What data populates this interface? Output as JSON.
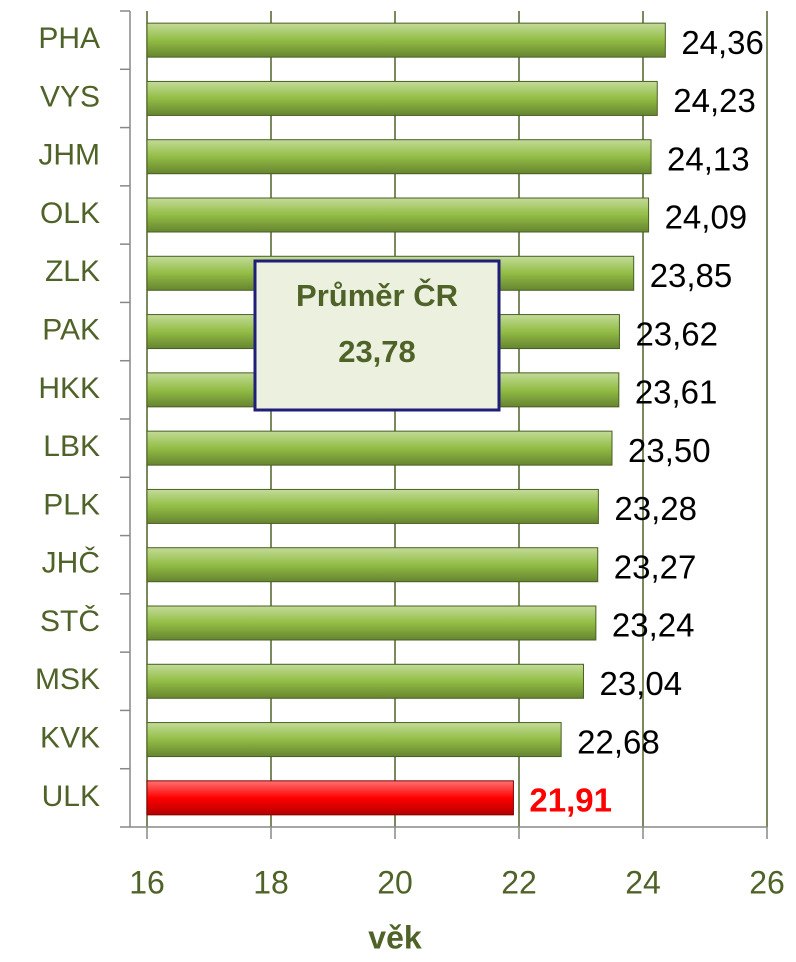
{
  "chart_data": {
    "type": "hbar",
    "categories": [
      "PHA",
      "VYS",
      "JHM",
      "OLK",
      "ZLK",
      "PAK",
      "HKK",
      "LBK",
      "PLK",
      "JHČ",
      "STČ",
      "MSK",
      "KVK",
      "ULK"
    ],
    "values": [
      24.36,
      24.23,
      24.13,
      24.09,
      23.85,
      23.62,
      23.61,
      23.5,
      23.28,
      23.27,
      23.24,
      23.04,
      22.68,
      21.91
    ],
    "value_labels": [
      "24,36",
      "24,23",
      "24,13",
      "24,09",
      "23,85",
      "23,62",
      "23,61",
      "23,50",
      "23,28",
      "23,27",
      "23,24",
      "23,04",
      "22,68",
      "21,91"
    ],
    "colors": [
      "#92bd45",
      "#92bd45",
      "#92bd45",
      "#92bd45",
      "#92bd45",
      "#92bd45",
      "#92bd45",
      "#92bd45",
      "#92bd45",
      "#92bd45",
      "#92bd45",
      "#92bd45",
      "#92bd45",
      "#ff0000"
    ],
    "value_label_colors": [
      "#000000",
      "#000000",
      "#000000",
      "#000000",
      "#000000",
      "#000000",
      "#000000",
      "#000000",
      "#000000",
      "#000000",
      "#000000",
      "#000000",
      "#000000",
      "#ff0000"
    ],
    "xlabel": "věk",
    "xlim": [
      16,
      26
    ],
    "xticks": [
      16,
      18,
      20,
      22,
      24,
      26
    ],
    "grid": true,
    "annotation": [
      "Průměr ČR",
      "23,78"
    ]
  }
}
